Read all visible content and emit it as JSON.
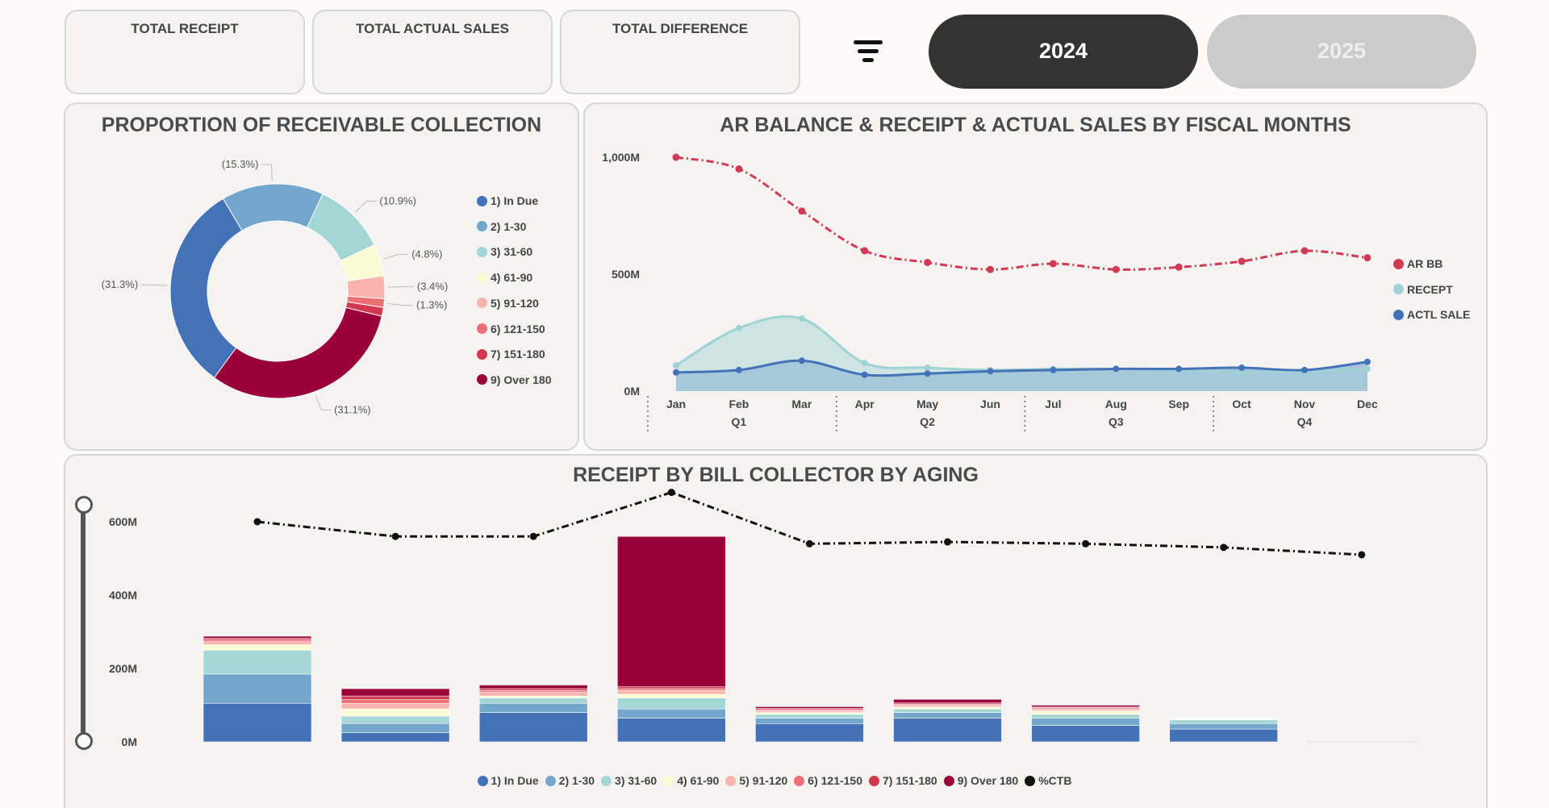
{
  "kpis": [
    {
      "title": "TOTAL RECEIPT"
    },
    {
      "title": "TOTAL ACTUAL SALES"
    },
    {
      "title": "TOTAL DIFFERENCE"
    }
  ],
  "filter_icon": "filter-icon",
  "years": [
    {
      "label": "2024",
      "selected": true
    },
    {
      "label": "2025",
      "selected": false
    }
  ],
  "colors": {
    "in_due": "#4472b8",
    "d1_30": "#72a6cb",
    "d31_60": "#a5d6d6",
    "d61_90": "#fdfbd3",
    "d91_120": "#f8b3ad",
    "d121_150": "#ec6f78",
    "d151_180": "#d2384e",
    "over_180": "#9a0039",
    "ctb": "#111111",
    "ar_bb": "#d03a55",
    "receipt": "#9fd3d3",
    "actl_sale": "#4472b8"
  },
  "chart_data": [
    {
      "type": "pie",
      "title": "PROPORTION OF RECEIVABLE COLLECTION",
      "slices": [
        {
          "label": "1) In Due",
          "value": 31.3,
          "display": "(31.3%)"
        },
        {
          "label": "2) 1-30",
          "value": 15.3,
          "display": "(15.3%)"
        },
        {
          "label": "3) 31-60",
          "value": 10.9,
          "display": "(10.9%)"
        },
        {
          "label": "4) 61-90",
          "value": 4.8,
          "display": "(4.8%)"
        },
        {
          "label": "5) 91-120",
          "value": 3.4,
          "display": "(3.4%)"
        },
        {
          "label": "6) 121-150",
          "value": 1.3,
          "display": "(1.3%)"
        },
        {
          "label": "7) 151-180",
          "value": 1.3,
          "display": ""
        },
        {
          "label": "9) Over 180",
          "value": 31.1,
          "display": "(31.1%)"
        }
      ],
      "legend": [
        "1) In Due",
        "2) 1-30",
        "3) 31-60",
        "4) 61-90",
        "5) 91-120",
        "6) 121-150",
        "7) 151-180",
        "9) Over 180"
      ],
      "legend_position": "right"
    },
    {
      "type": "line",
      "title": "AR BALANCE & RECEIPT & ACTUAL SALES BY FISCAL MONTHS",
      "categories": [
        "Jan",
        "Feb",
        "Mar",
        "Apr",
        "May",
        "Jun",
        "Jul",
        "Aug",
        "Sep",
        "Oct",
        "Nov",
        "Dec"
      ],
      "quarters": [
        "Q1",
        "Q2",
        "Q3",
        "Q4"
      ],
      "y_ticks": [
        "0M",
        "500M",
        "1,000M"
      ],
      "ylim": [
        0,
        1000
      ],
      "series": [
        {
          "name": "AR BB",
          "style": "dash-dot",
          "values": [
            1000,
            950,
            770,
            600,
            550,
            520,
            545,
            520,
            530,
            555,
            600,
            570
          ]
        },
        {
          "name": "RECEPT",
          "style": "area",
          "values": [
            110,
            270,
            310,
            120,
            100,
            90,
            95,
            95,
            90,
            80,
            85,
            95
          ]
        },
        {
          "name": "ACTL SALE",
          "style": "line",
          "values": [
            80,
            90,
            130,
            70,
            75,
            85,
            90,
            95,
            95,
            100,
            90,
            125
          ]
        }
      ],
      "legend": [
        "AR BB",
        "RECEPT",
        "ACTL SALE"
      ],
      "legend_position": "right"
    },
    {
      "type": "bar",
      "stacked": true,
      "title": "RECEIPT BY BILL COLLECTOR BY AGING",
      "y_ticks": [
        "0M",
        "200M",
        "400M",
        "600M"
      ],
      "ylim": [
        0,
        600
      ],
      "categories": [
        "",
        "",
        "",
        "",
        "",
        "",
        "",
        "",
        ""
      ],
      "series": [
        {
          "name": "1) In Due",
          "values": [
            105,
            25,
            80,
            65,
            50,
            65,
            45,
            35,
            0
          ]
        },
        {
          "name": "2) 1-30",
          "values": [
            80,
            25,
            25,
            25,
            15,
            15,
            20,
            15,
            0
          ]
        },
        {
          "name": "3) 31-60",
          "values": [
            65,
            20,
            15,
            30,
            10,
            10,
            10,
            10,
            0
          ]
        },
        {
          "name": "4) 61-90",
          "values": [
            15,
            20,
            5,
            10,
            5,
            5,
            10,
            2,
            0
          ]
        },
        {
          "name": "5) 91-120",
          "values": [
            8,
            15,
            10,
            10,
            5,
            5,
            5,
            2,
            0
          ]
        },
        {
          "name": "6) 121-150",
          "values": [
            5,
            10,
            5,
            5,
            3,
            3,
            3,
            1,
            0
          ]
        },
        {
          "name": "7) 151-180",
          "values": [
            5,
            10,
            5,
            5,
            3,
            3,
            2,
            1,
            0
          ]
        },
        {
          "name": "9) Over 180",
          "values": [
            5,
            20,
            10,
            410,
            5,
            10,
            5,
            0,
            0
          ]
        }
      ],
      "ctb_series": {
        "name": "%CTB",
        "style": "dash-dot",
        "values": [
          600,
          560,
          560,
          680,
          540,
          545,
          540,
          530,
          510
        ]
      },
      "legend": [
        "1) In Due",
        "2) 1-30",
        "3) 31-60",
        "4) 61-90",
        "5) 91-120",
        "6) 121-150",
        "7) 151-180",
        "9) Over 180",
        "%CTB"
      ],
      "legend_position": "bottom"
    }
  ]
}
